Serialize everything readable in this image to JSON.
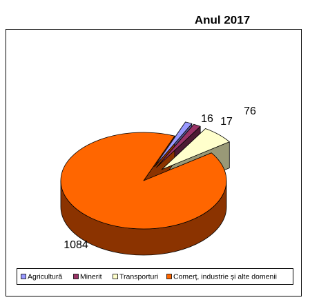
{
  "chart_data": {
    "type": "pie",
    "title": "Anul 2017",
    "categories": [
      "Agricultură",
      "Minerit",
      "Transporturi",
      "Comerț, industrie și alte domenii"
    ],
    "values": [
      16,
      17,
      76,
      1084
    ],
    "colors": [
      "#9999ff",
      "#993366",
      "#ffffcc",
      "#ff6600"
    ],
    "side_colors": [
      "#55558f",
      "#4d1a33",
      "#999977",
      "#8b3300"
    ],
    "legend": "bottom"
  }
}
